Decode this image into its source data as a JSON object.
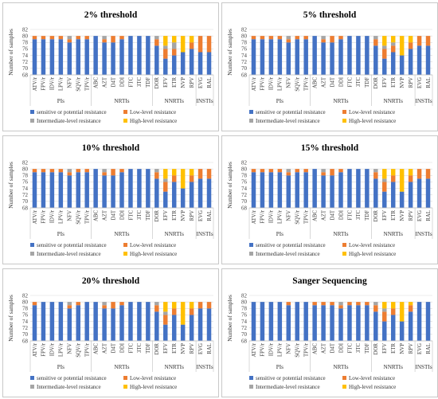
{
  "colors": {
    "sensitive": "#4472c4",
    "low": "#ed7d31",
    "intermediate": "#a5a5a5",
    "high": "#ffc000"
  },
  "axis": {
    "ylabel": "Number of samples",
    "ylim": [
      68,
      82
    ],
    "yticks": [
      68,
      70,
      72,
      74,
      76,
      78,
      80,
      82
    ]
  },
  "drugs": [
    "ATV/r",
    "FPV/r",
    "IDV/r",
    "LPV/r",
    "NFV",
    "SQV/r",
    "TPV/r",
    "ABC",
    "AZT",
    "D4T",
    "DDI",
    "FTC",
    "3TC",
    "TDF",
    "DOR",
    "EFV",
    "ETR",
    "NVP",
    "RPV",
    "EVG",
    "RAL"
  ],
  "groups": [
    {
      "label": "PIs",
      "start": 0,
      "end": 6
    },
    {
      "label": "NRTIs",
      "start": 7,
      "end": 13
    },
    {
      "label": "NNRTIs",
      "start": 14,
      "end": 18
    },
    {
      "label": "INSTIs",
      "start": 19,
      "end": 20
    }
  ],
  "legend": [
    {
      "key": "sensitive",
      "label": "sensitive or potential resistance"
    },
    {
      "key": "low",
      "label": "Low-level resistance"
    },
    {
      "key": "intermediate",
      "label": "Intermediate-level resistance"
    },
    {
      "key": "high",
      "label": "High-level resistance"
    }
  ],
  "chart_data": [
    {
      "type": "bar",
      "title": "2% threshold",
      "series": [
        {
          "key": "sensitive",
          "values": [
            79,
            79,
            79,
            79,
            78,
            79,
            79,
            80,
            78,
            78,
            79,
            80,
            80,
            80,
            77,
            73,
            74,
            75,
            76,
            75,
            75
          ]
        },
        {
          "key": "low",
          "values": [
            1,
            1,
            1,
            1,
            1,
            1,
            1,
            0,
            1,
            2,
            1,
            0,
            0,
            0,
            2,
            3,
            2,
            0,
            2,
            5,
            5
          ]
        },
        {
          "key": "intermediate",
          "values": [
            0,
            0,
            0,
            0,
            1,
            0,
            0,
            0,
            1,
            0,
            0,
            0,
            0,
            0,
            1,
            1,
            2,
            0,
            0,
            0,
            0
          ]
        },
        {
          "key": "high",
          "values": [
            0,
            0,
            0,
            0,
            0,
            0,
            0,
            0,
            0,
            0,
            0,
            0,
            0,
            0,
            0,
            3,
            2,
            5,
            2,
            0,
            0
          ]
        }
      ]
    },
    {
      "type": "bar",
      "title": "5% threshold",
      "series": [
        {
          "key": "sensitive",
          "values": [
            79,
            79,
            79,
            79,
            78,
            79,
            79,
            80,
            78,
            78,
            79,
            80,
            80,
            80,
            77,
            73,
            75,
            74,
            76,
            77,
            77
          ]
        },
        {
          "key": "low",
          "values": [
            1,
            1,
            1,
            1,
            1,
            1,
            1,
            0,
            1,
            2,
            1,
            0,
            0,
            0,
            2,
            3,
            2,
            0,
            2,
            3,
            3
          ]
        },
        {
          "key": "intermediate",
          "values": [
            0,
            0,
            0,
            0,
            1,
            0,
            0,
            0,
            1,
            0,
            0,
            0,
            0,
            0,
            1,
            1,
            1,
            0,
            0,
            0,
            0
          ]
        },
        {
          "key": "high",
          "values": [
            0,
            0,
            0,
            0,
            0,
            0,
            0,
            0,
            0,
            0,
            0,
            0,
            0,
            0,
            0,
            3,
            2,
            6,
            2,
            0,
            0
          ]
        }
      ]
    },
    {
      "type": "bar",
      "title": "10% threshold",
      "series": [
        {
          "key": "sensitive",
          "values": [
            79,
            79,
            79,
            79,
            78,
            79,
            79,
            80,
            78,
            78,
            79,
            80,
            80,
            80,
            77,
            73,
            76,
            74,
            76,
            77,
            77
          ]
        },
        {
          "key": "low",
          "values": [
            1,
            1,
            1,
            1,
            1,
            1,
            1,
            0,
            1,
            2,
            1,
            0,
            0,
            0,
            2,
            3,
            2,
            0,
            2,
            3,
            3
          ]
        },
        {
          "key": "intermediate",
          "values": [
            0,
            0,
            0,
            0,
            1,
            0,
            0,
            0,
            1,
            0,
            0,
            0,
            0,
            0,
            1,
            1,
            0,
            0,
            0,
            0,
            0
          ]
        },
        {
          "key": "high",
          "values": [
            0,
            0,
            0,
            0,
            0,
            0,
            0,
            0,
            0,
            0,
            0,
            0,
            0,
            0,
            0,
            3,
            2,
            6,
            2,
            0,
            0
          ]
        }
      ]
    },
    {
      "type": "bar",
      "title": "15% threshold",
      "series": [
        {
          "key": "sensitive",
          "values": [
            79,
            79,
            79,
            79,
            78,
            79,
            79,
            80,
            78,
            78,
            79,
            80,
            80,
            80,
            77,
            73,
            76,
            73,
            76,
            77,
            77
          ]
        },
        {
          "key": "low",
          "values": [
            1,
            1,
            1,
            1,
            1,
            1,
            1,
            0,
            1,
            2,
            1,
            0,
            0,
            0,
            2,
            3,
            2,
            0,
            2,
            3,
            3
          ]
        },
        {
          "key": "intermediate",
          "values": [
            0,
            0,
            0,
            0,
            1,
            0,
            0,
            0,
            1,
            0,
            0,
            0,
            0,
            0,
            1,
            1,
            0,
            0,
            0,
            0,
            0
          ]
        },
        {
          "key": "high",
          "values": [
            0,
            0,
            0,
            0,
            0,
            0,
            0,
            0,
            0,
            0,
            0,
            0,
            0,
            0,
            0,
            3,
            2,
            7,
            2,
            0,
            0
          ]
        }
      ]
    },
    {
      "type": "bar",
      "title": "20% threshold",
      "series": [
        {
          "key": "sensitive",
          "values": [
            79,
            80,
            80,
            80,
            78,
            79,
            80,
            80,
            78,
            78,
            79,
            80,
            80,
            80,
            77,
            73,
            76,
            73,
            76,
            78,
            78
          ]
        },
        {
          "key": "low",
          "values": [
            1,
            0,
            0,
            0,
            1,
            1,
            0,
            0,
            1,
            2,
            1,
            0,
            0,
            0,
            2,
            3,
            2,
            0,
            2,
            2,
            2
          ]
        },
        {
          "key": "intermediate",
          "values": [
            0,
            0,
            0,
            0,
            1,
            0,
            0,
            0,
            1,
            0,
            0,
            0,
            0,
            0,
            1,
            1,
            0,
            0,
            0,
            0,
            0
          ]
        },
        {
          "key": "high",
          "values": [
            0,
            0,
            0,
            0,
            0,
            0,
            0,
            0,
            0,
            0,
            0,
            0,
            0,
            0,
            0,
            3,
            2,
            7,
            2,
            0,
            0
          ]
        }
      ]
    },
    {
      "type": "bar",
      "title": "Sanger Sequencing",
      "series": [
        {
          "key": "sensitive",
          "values": [
            80,
            80,
            80,
            80,
            79,
            80,
            80,
            79,
            79,
            79,
            78,
            79,
            79,
            79,
            77,
            74,
            76,
            74,
            77,
            80,
            80
          ]
        },
        {
          "key": "low",
          "values": [
            0,
            0,
            0,
            0,
            1,
            0,
            0,
            1,
            1,
            1,
            1,
            1,
            1,
            1,
            2,
            3,
            2,
            0,
            2,
            0,
            0
          ]
        },
        {
          "key": "intermediate",
          "values": [
            0,
            0,
            0,
            0,
            0,
            0,
            0,
            0,
            0,
            0,
            1,
            0,
            0,
            0,
            1,
            1,
            0,
            0,
            0,
            0,
            0
          ]
        },
        {
          "key": "high",
          "values": [
            0,
            0,
            0,
            0,
            0,
            0,
            0,
            0,
            0,
            0,
            0,
            0,
            0,
            0,
            0,
            2,
            2,
            6,
            1,
            0,
            0
          ]
        }
      ]
    }
  ]
}
